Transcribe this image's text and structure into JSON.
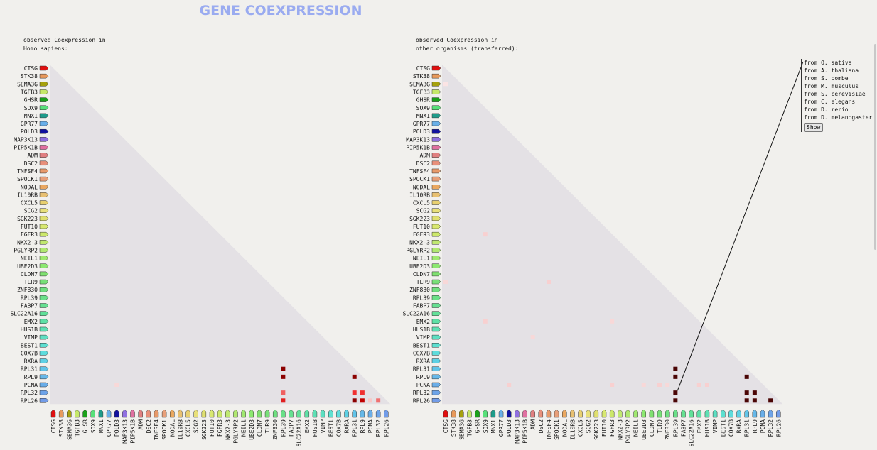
{
  "title": "GENE COEXPRESSION",
  "left_caption": "observed Coexpression in\nHomo sapiens:",
  "right_caption": "observed Coexpression in\nother organisms (transferred):",
  "organisms": [
    "from O. sativa",
    "from A. thaliana",
    "from S. pombe",
    "from M. musculus",
    "from S. cerevisiae",
    "from C. elegans",
    "from D. rerio",
    "from D. melanogaster"
  ],
  "show_label": "Show",
  "genes": [
    {
      "name": "CTSG",
      "color": "#e01010"
    },
    {
      "name": "STK38",
      "color": "#e89a5c"
    },
    {
      "name": "SEMA3G",
      "color": "#a6a10c"
    },
    {
      "name": "TGFB3",
      "color": "#c6e86a"
    },
    {
      "name": "GHSR",
      "color": "#1aa01a"
    },
    {
      "name": "SOX9",
      "color": "#58e07a"
    },
    {
      "name": "MNX1",
      "color": "#1e9c8a"
    },
    {
      "name": "GPR77",
      "color": "#6ab0e8"
    },
    {
      "name": "POLD3",
      "color": "#12129e"
    },
    {
      "name": "MAP3K13",
      "color": "#9070e0"
    },
    {
      "name": "PIP5K1B",
      "color": "#e070a0"
    },
    {
      "name": "ADM",
      "color": "#e08080"
    },
    {
      "name": "DSC2",
      "color": "#e8907a"
    },
    {
      "name": "TNFSF4",
      "color": "#e89a6a"
    },
    {
      "name": "SPOCK1",
      "color": "#e8a07a"
    },
    {
      "name": "NODAL",
      "color": "#eaa860"
    },
    {
      "name": "IL10RB",
      "color": "#e8c070"
    },
    {
      "name": "CXCL5",
      "color": "#e8d070"
    },
    {
      "name": "SCG2",
      "color": "#e8e07a"
    },
    {
      "name": "SGK223",
      "color": "#e0e070"
    },
    {
      "name": "FUT10",
      "color": "#d8e870"
    },
    {
      "name": "FGFR3",
      "color": "#cce86a"
    },
    {
      "name": "NKX2-3",
      "color": "#c0e870"
    },
    {
      "name": "PGLYRP2",
      "color": "#b0e870"
    },
    {
      "name": "NEIL1",
      "color": "#a0e870"
    },
    {
      "name": "UBE2D3",
      "color": "#8ce870"
    },
    {
      "name": "CLDN7",
      "color": "#80e070"
    },
    {
      "name": "TLR9",
      "color": "#78e078"
    },
    {
      "name": "ZNF830",
      "color": "#70e080"
    },
    {
      "name": "RPL39",
      "color": "#6ae088"
    },
    {
      "name": "FABP7",
      "color": "#66e090"
    },
    {
      "name": "SLC22A16",
      "color": "#62e098"
    },
    {
      "name": "EMX2",
      "color": "#5ee0a6"
    },
    {
      "name": "HUS1B",
      "color": "#5ee0b4"
    },
    {
      "name": "VIMP",
      "color": "#5ee0c2"
    },
    {
      "name": "BEST1",
      "color": "#5ee0d0"
    },
    {
      "name": "COX7B",
      "color": "#5edcdc"
    },
    {
      "name": "RXRA",
      "color": "#5ed0e4"
    },
    {
      "name": "RPL31",
      "color": "#62c4e8"
    },
    {
      "name": "RPL9",
      "color": "#66b8e8"
    },
    {
      "name": "PCNA",
      "color": "#6aaee8"
    },
    {
      "name": "RPL32",
      "color": "#6ea4e8"
    },
    {
      "name": "RPL26",
      "color": "#729ce8"
    }
  ],
  "left_cells": [
    {
      "row": "RPL31",
      "col": "RPL39",
      "color": "#8b0000"
    },
    {
      "row": "RPL9",
      "col": "RPL39",
      "color": "#8b0000"
    },
    {
      "row": "RPL9",
      "col": "RPL31",
      "color": "#8b0000"
    },
    {
      "row": "PCNA",
      "col": "POLD3",
      "color": "#f8d8d8"
    },
    {
      "row": "RPL32",
      "col": "RPL39",
      "color": "#f06060"
    },
    {
      "row": "RPL32",
      "col": "RPL31",
      "color": "#f03030"
    },
    {
      "row": "RPL32",
      "col": "RPL9",
      "color": "#f03030"
    },
    {
      "row": "RPL26",
      "col": "RPL39",
      "color": "#e02020"
    },
    {
      "row": "RPL26",
      "col": "RPL31",
      "color": "#8b0000"
    },
    {
      "row": "RPL26",
      "col": "RPL9",
      "color": "#c00000"
    },
    {
      "row": "RPL26",
      "col": "PCNA",
      "color": "#f8c8c8"
    },
    {
      "row": "RPL26",
      "col": "RPL32",
      "color": "#f07070"
    }
  ],
  "right_cells": [
    {
      "row": "SEMA3G",
      "col": "CTSG",
      "color": "#fbe4e4"
    },
    {
      "row": "FGFR3",
      "col": "SOX9",
      "color": "#f8d0d0"
    },
    {
      "row": "TLR9",
      "col": "CTSG",
      "color": "#f8d8d8"
    },
    {
      "row": "TLR9",
      "col": "TNFSF4",
      "color": "#f8d0d0"
    },
    {
      "row": "EMX2",
      "col": "SOX9",
      "color": "#f8d0d0"
    },
    {
      "row": "EMX2",
      "col": "FGFR3",
      "color": "#f8d8d8"
    },
    {
      "row": "VIMP",
      "col": "ADM",
      "color": "#f8d8d8"
    },
    {
      "row": "RPL31",
      "col": "RPL39",
      "color": "#4a0505"
    },
    {
      "row": "RPL9",
      "col": "RPL39",
      "color": "#4a0505"
    },
    {
      "row": "RPL9",
      "col": "RPL31",
      "color": "#4a0505"
    },
    {
      "row": "PCNA",
      "col": "POLD3",
      "color": "#f8d0d0"
    },
    {
      "row": "PCNA",
      "col": "FGFR3",
      "color": "#f8d0d0"
    },
    {
      "row": "PCNA",
      "col": "UBE2D3",
      "color": "#f8d8d8"
    },
    {
      "row": "PCNA",
      "col": "TLR9",
      "color": "#f8d0d0"
    },
    {
      "row": "PCNA",
      "col": "ZNF830",
      "color": "#f8d8d8"
    },
    {
      "row": "PCNA",
      "col": "EMX2",
      "color": "#f8d0d0"
    },
    {
      "row": "PCNA",
      "col": "HUS1B",
      "color": "#f8d0d0"
    },
    {
      "row": "RPL32",
      "col": "RPL39",
      "color": "#4a0505"
    },
    {
      "row": "RPL32",
      "col": "RPL31",
      "color": "#4a0505"
    },
    {
      "row": "RPL32",
      "col": "RPL9",
      "color": "#4a0505"
    },
    {
      "row": "RPL26",
      "col": "RPL39",
      "color": "#4a0505"
    },
    {
      "row": "RPL26",
      "col": "RPL31",
      "color": "#4a0505"
    },
    {
      "row": "RPL26",
      "col": "RPL9",
      "color": "#4a0505"
    },
    {
      "row": "RPL26",
      "col": "RPL32",
      "color": "#4a0505"
    }
  ],
  "colors": {
    "triangle": "#e4e1e5",
    "connector": "#111111"
  }
}
